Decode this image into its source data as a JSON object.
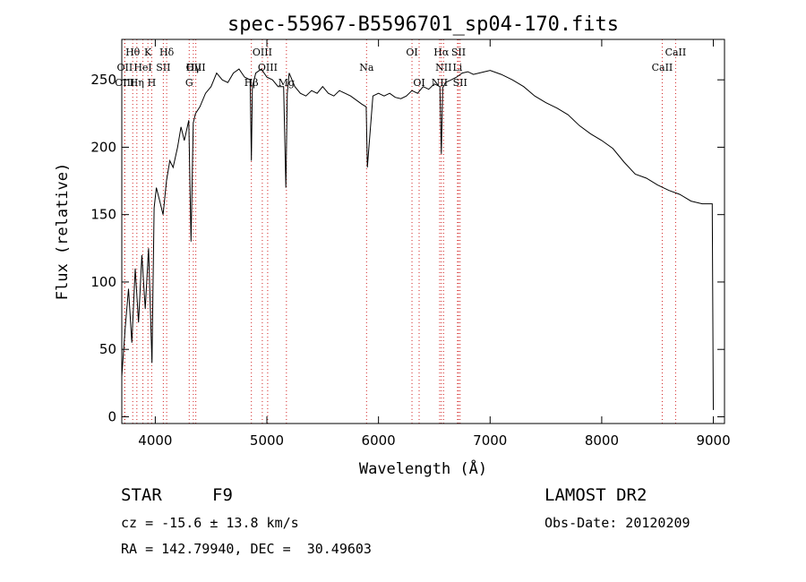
{
  "chart_data": {
    "type": "line",
    "title": "spec-55967-B5596701_sp04-170.fits",
    "xlabel": "Wavelength (Å)",
    "ylabel": "Flux (relative)",
    "xlim": [
      3700,
      9100
    ],
    "ylim": [
      -5,
      280
    ],
    "xticks": [
      4000,
      5000,
      6000,
      7000,
      8000,
      9000
    ],
    "xtick_labels": [
      "4000",
      "5000",
      "6000",
      "7000",
      "8000",
      "9000"
    ],
    "yticks": [
      0,
      50,
      100,
      150,
      200,
      250
    ],
    "ytick_labels": [
      "0",
      "50",
      "100",
      "150",
      "200",
      "250"
    ],
    "grid": false,
    "series": [
      {
        "x": [
          3700,
          3730,
          3760,
          3790,
          3820,
          3850,
          3880,
          3910,
          3940,
          3970,
          3990,
          4010,
          4040,
          4070,
          4100,
          4130,
          4160,
          4200,
          4230,
          4260,
          4300,
          4320,
          4340,
          4360,
          4400,
          4450,
          4500,
          4550,
          4600,
          4650,
          4700,
          4750,
          4800,
          4850,
          4861,
          4870,
          4900,
          4950,
          5000,
          5050,
          5100,
          5150,
          5170,
          5183,
          5200,
          5250,
          5300,
          5350,
          5400,
          5450,
          5500,
          5550,
          5600,
          5650,
          5700,
          5750,
          5800,
          5850,
          5890,
          5900,
          5950,
          6000,
          6050,
          6100,
          6150,
          6200,
          6250,
          6300,
          6350,
          6400,
          6450,
          6500,
          6550,
          6563,
          6575,
          6600,
          6650,
          6700,
          6750,
          6800,
          6850,
          6900,
          6950,
          7000,
          7100,
          7200,
          7300,
          7400,
          7500,
          7600,
          7700,
          7800,
          7900,
          8000,
          8100,
          8200,
          8300,
          8400,
          8500,
          8600,
          8700,
          8800,
          8900,
          8990,
          9000
        ],
        "y": [
          30,
          65,
          95,
          55,
          110,
          70,
          120,
          80,
          125,
          40,
          155,
          170,
          160,
          150,
          175,
          190,
          185,
          200,
          215,
          205,
          220,
          130,
          218,
          225,
          230,
          240,
          245,
          255,
          250,
          248,
          255,
          258,
          252,
          250,
          190,
          245,
          255,
          258,
          252,
          250,
          245,
          245,
          170,
          240,
          255,
          245,
          240,
          238,
          242,
          240,
          245,
          240,
          238,
          242,
          240,
          238,
          235,
          232,
          230,
          185,
          238,
          240,
          238,
          240,
          237,
          236,
          238,
          242,
          240,
          245,
          243,
          247,
          245,
          195,
          244,
          248,
          250,
          252,
          255,
          256,
          254,
          255,
          256,
          257,
          254,
          250,
          245,
          238,
          233,
          229,
          224,
          216,
          210,
          205,
          199,
          189,
          180,
          177,
          172,
          168,
          165,
          160,
          158,
          158,
          5
        ],
        "color": "#000000"
      }
    ],
    "line_markers": [
      {
        "name": "Hθ",
        "x": 3798,
        "row": 0
      },
      {
        "name": "K",
        "x": 3934,
        "row": 0
      },
      {
        "name": "Hδ",
        "x": 4102,
        "row": 0
      },
      {
        "name": "OIII",
        "x": 4959,
        "row": 0
      },
      {
        "name": "OI",
        "x": 6300,
        "row": 0
      },
      {
        "name": "Hα",
        "x": 6563,
        "row": 0
      },
      {
        "name": "SII",
        "x": 6717,
        "row": 0
      },
      {
        "name": "CaII",
        "x": 8662,
        "row": 0
      },
      {
        "name": "OII",
        "x": 3727,
        "row": 1
      },
      {
        "name": "HeI",
        "x": 3889,
        "row": 1
      },
      {
        "name": "SII",
        "x": 4072,
        "row": 1
      },
      {
        "name": "Hγ",
        "x": 4341,
        "row": 1
      },
      {
        "name": "OIII",
        "x": 5007,
        "row": 1
      },
      {
        "name": "Na",
        "x": 5893,
        "row": 1
      },
      {
        "name": "NII",
        "x": 6583,
        "row": 1
      },
      {
        "name": "Li",
        "x": 6708,
        "row": 1
      },
      {
        "name": "CaII",
        "x": 8542,
        "row": 1
      },
      {
        "name": "OIII",
        "x": 4363,
        "row": 1
      },
      {
        "name": "OIII",
        "x": 3726,
        "row": 2
      },
      {
        "name": "Hη",
        "x": 3835,
        "row": 2
      },
      {
        "name": "H",
        "x": 3968,
        "row": 2
      },
      {
        "name": "G",
        "x": 4304,
        "row": 2
      },
      {
        "name": "Hβ",
        "x": 4861,
        "row": 2
      },
      {
        "name": "Mg",
        "x": 5175,
        "row": 2
      },
      {
        "name": "OI",
        "x": 6364,
        "row": 2
      },
      {
        "name": "NII",
        "x": 6548,
        "row": 2
      },
      {
        "name": "SII",
        "x": 6731,
        "row": 2
      }
    ],
    "marker_color": "#d22222"
  },
  "info": {
    "object_class": "STAR",
    "subclass": "F9",
    "survey": "LAMOST DR2",
    "redshift_line": "cz = -15.6 ± 13.8 km/s",
    "obs_date_line": "Obs-Date: 20120209",
    "coords_line": "RA = 142.79940, DEC =  30.49603"
  }
}
